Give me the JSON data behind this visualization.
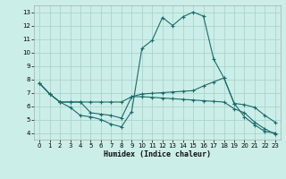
{
  "title": "",
  "xlabel": "Humidex (Indice chaleur)",
  "background_color": "#cceee8",
  "grid_color": "#aad4ce",
  "line_color": "#1a6b6b",
  "xlim": [
    -0.5,
    23.5
  ],
  "ylim": [
    3.5,
    13.5
  ],
  "xticks": [
    0,
    1,
    2,
    3,
    4,
    5,
    6,
    7,
    8,
    9,
    10,
    11,
    12,
    13,
    14,
    15,
    16,
    17,
    18,
    19,
    20,
    21,
    22,
    23
  ],
  "yticks": [
    4,
    5,
    6,
    7,
    8,
    9,
    10,
    11,
    12,
    13
  ],
  "series": [
    {
      "x": [
        0,
        1,
        2,
        3,
        4,
        5,
        6,
        7,
        8,
        9,
        10,
        11,
        12,
        13,
        14,
        15,
        16,
        17,
        18,
        19,
        20,
        21,
        22,
        23
      ],
      "y": [
        7.7,
        6.9,
        6.3,
        5.9,
        5.3,
        5.2,
        5.0,
        4.65,
        4.45,
        5.6,
        10.3,
        10.9,
        12.6,
        12.0,
        12.65,
        13.0,
        12.7,
        9.5,
        8.1,
        6.2,
        5.2,
        4.6,
        4.1,
        4.0
      ]
    },
    {
      "x": [
        0,
        1,
        2,
        3,
        4,
        5,
        6,
        7,
        8,
        9,
        10,
        11,
        12,
        13,
        14,
        15,
        16,
        17,
        18,
        19,
        20,
        21,
        22,
        23
      ],
      "y": [
        7.7,
        6.9,
        6.3,
        6.3,
        6.3,
        6.3,
        6.3,
        6.3,
        6.3,
        6.7,
        6.9,
        6.95,
        7.0,
        7.05,
        7.1,
        7.15,
        7.5,
        7.8,
        8.1,
        6.2,
        6.1,
        5.9,
        5.3,
        4.8
      ]
    },
    {
      "x": [
        0,
        1,
        2,
        3,
        4,
        5,
        6,
        7,
        8,
        9,
        10,
        11,
        12,
        13,
        14,
        15,
        16,
        17,
        18,
        19,
        20,
        21,
        22,
        23
      ],
      "y": [
        7.7,
        6.9,
        6.3,
        6.3,
        6.3,
        5.5,
        5.4,
        5.3,
        5.1,
        6.7,
        6.7,
        6.65,
        6.6,
        6.55,
        6.5,
        6.45,
        6.4,
        6.35,
        6.3,
        5.8,
        5.5,
        4.8,
        4.3,
        3.9
      ]
    }
  ]
}
